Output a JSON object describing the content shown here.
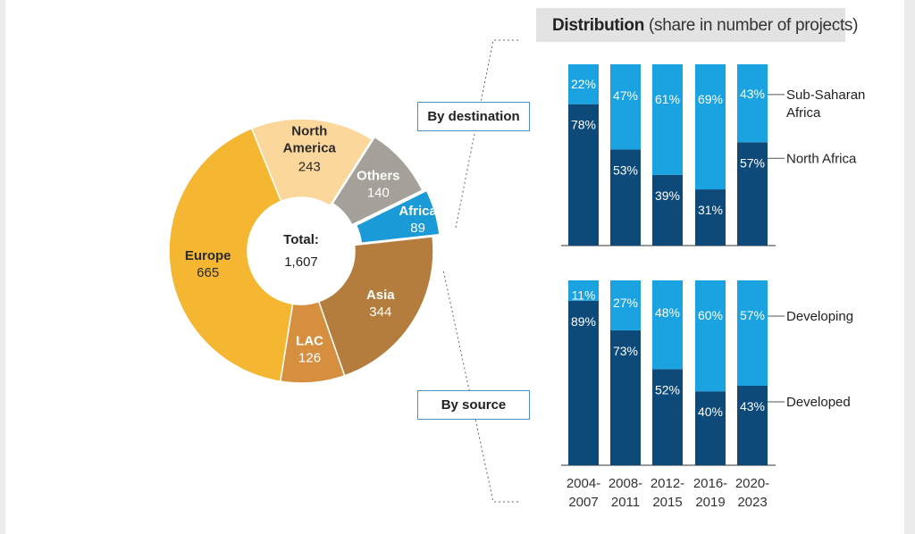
{
  "title": {
    "bold": "Distribution",
    "rest": " (share in number of projects)"
  },
  "labels": {
    "by_destination": "By destination",
    "by_source": "By source"
  },
  "colors": {
    "europe": "#f5b731",
    "north_america": "#fbd79b",
    "others": "#a6a09a",
    "africa": "#1a9ad6",
    "asia": "#b57d3d",
    "lac": "#d58f3e",
    "dark_blue": "#0d4a7a",
    "light_blue": "#1aa3e0"
  },
  "chart_data": [
    {
      "type": "pie",
      "variant": "donut",
      "center_label": "Total:",
      "center_value": "1,607",
      "slices": [
        {
          "label": "North America",
          "value": 243,
          "display": "243"
        },
        {
          "label": "Others",
          "value": 140,
          "display": "140"
        },
        {
          "label": "Africa",
          "value": 89,
          "display": "89"
        },
        {
          "label": "Asia",
          "value": 344,
          "display": "344"
        },
        {
          "label": "LAC",
          "value": 126,
          "display": "126"
        },
        {
          "label": "Europe",
          "value": 665,
          "display": "665"
        }
      ]
    },
    {
      "type": "bar",
      "stacked": true,
      "title": "By destination",
      "categories": [
        "2004-2007",
        "2008-2011",
        "2012-2015",
        "2016-2019",
        "2020-2023"
      ],
      "series": [
        {
          "name": "North Africa",
          "values": [
            78,
            53,
            39,
            31,
            57
          ]
        },
        {
          "name": "Sub-Saharan Africa",
          "values": [
            22,
            47,
            61,
            69,
            43
          ]
        }
      ],
      "legend_lines": {
        "North Africa": [
          "North Africa"
        ],
        "Sub-Saharan Africa": [
          "Sub-Saharan",
          "Africa"
        ]
      },
      "ylim": [
        0,
        100
      ]
    },
    {
      "type": "bar",
      "stacked": true,
      "title": "By source",
      "categories": [
        "2004-2007",
        "2008-2011",
        "2012-2015",
        "2016-2019",
        "2020-2023"
      ],
      "category_lines": [
        [
          "2004-",
          "2007"
        ],
        [
          "2008-",
          "2011"
        ],
        [
          "2012-",
          "2015"
        ],
        [
          "2016-",
          "2019"
        ],
        [
          "2020-",
          "2023"
        ]
      ],
      "series": [
        {
          "name": "Developed",
          "values": [
            89,
            73,
            52,
            40,
            43
          ]
        },
        {
          "name": "Developing",
          "values": [
            11,
            27,
            48,
            60,
            57
          ]
        }
      ],
      "ylim": [
        0,
        100
      ]
    }
  ]
}
